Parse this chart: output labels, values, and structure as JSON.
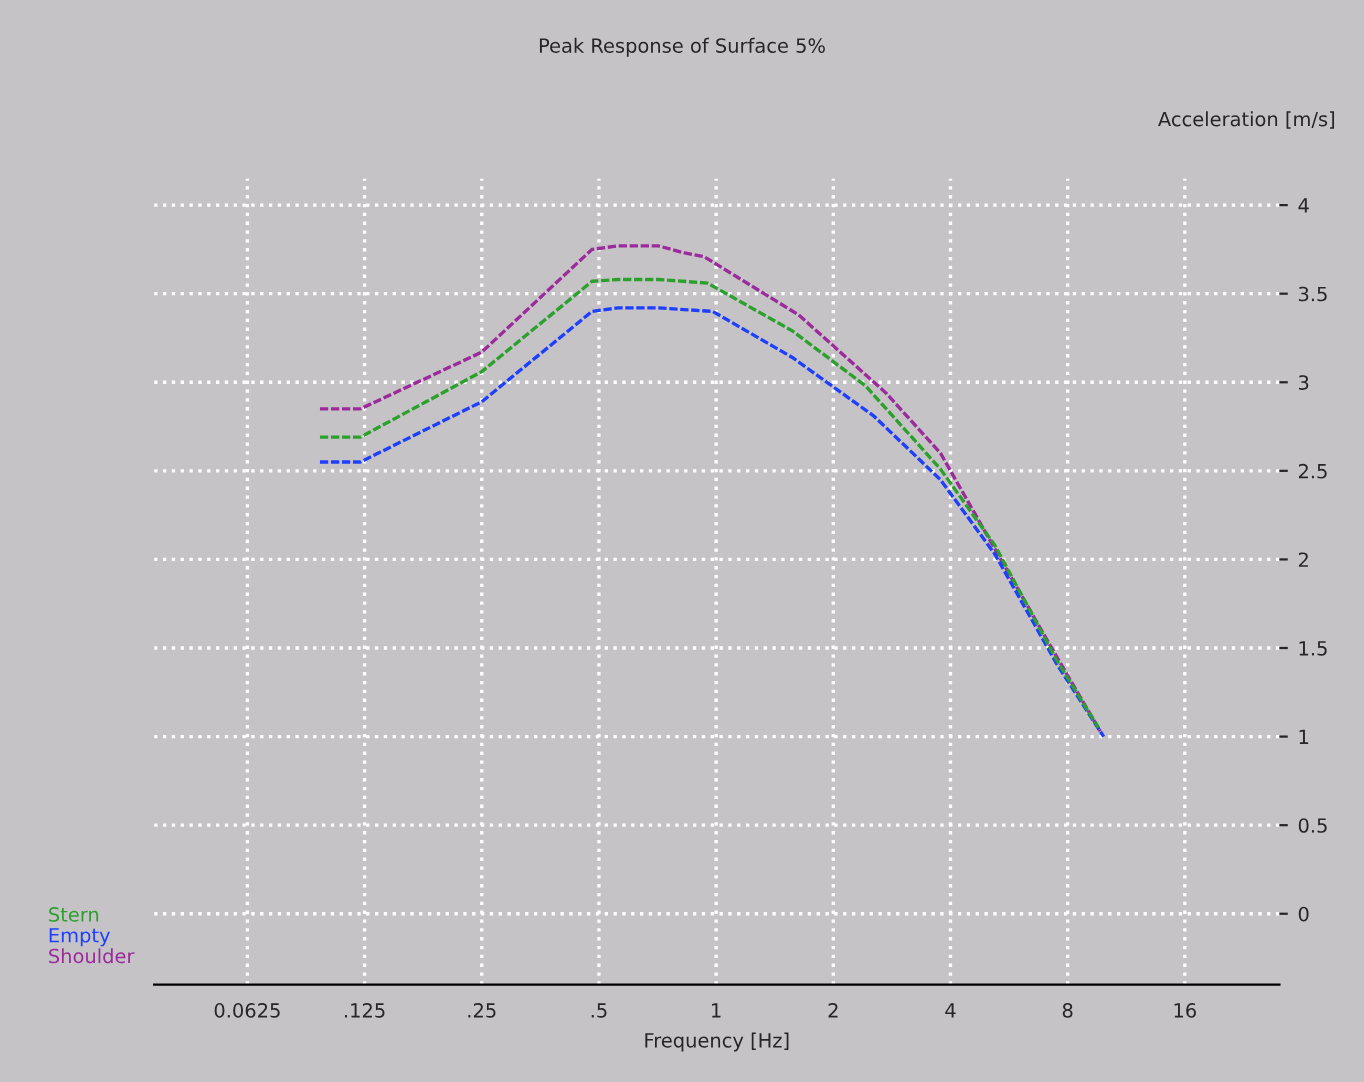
{
  "chart_data": {
    "type": "line",
    "title": "Peak Response of Surface 5%",
    "xlabel": "Frequency [Hz]",
    "ylabel": "Acceleration [m/s]",
    "log": "x",
    "xlim": [
      0.036,
      28
    ],
    "xticks": [
      {
        "value": 0.0625,
        "label": "0.0625"
      },
      {
        "value": 0.125,
        "label": ".125"
      },
      {
        "value": 0.25,
        "label": ".25"
      },
      {
        "value": 0.5,
        "label": ".5"
      },
      1,
      2,
      4,
      8,
      16
    ],
    "ylim": [
      -0.4,
      4.15
    ],
    "yticks": [
      0,
      0.5,
      1,
      1.5,
      2,
      2.5,
      3,
      3.5,
      4
    ],
    "grid": true,
    "legend": "bottom left",
    "line_style": "dashed",
    "series": [
      {
        "name": "Stern",
        "color": "#2ca02c",
        "x": [
          0.096,
          0.122,
          0.25,
          0.48,
          0.56,
          0.71,
          0.95,
          1.57,
          2.42,
          3.77,
          5.2,
          7.5,
          9.6
        ],
        "values": [
          2.69,
          2.69,
          3.06,
          3.57,
          3.58,
          3.58,
          3.56,
          3.29,
          2.98,
          2.51,
          2.08,
          1.43,
          1.05
        ]
      },
      {
        "name": "Empty",
        "color": "#1f3fff",
        "x": [
          0.096,
          0.122,
          0.25,
          0.48,
          0.56,
          0.71,
          0.98,
          1.57,
          2.54,
          3.77,
          5.2,
          7.5,
          9.9
        ],
        "values": [
          2.55,
          2.55,
          2.89,
          3.4,
          3.42,
          3.42,
          3.4,
          3.14,
          2.81,
          2.45,
          2.03,
          1.41,
          1.0
        ]
      },
      {
        "name": "Shoulder",
        "color": "#9b2a9b",
        "x": [
          0.096,
          0.122,
          0.25,
          0.48,
          0.56,
          0.71,
          0.83,
          0.93,
          1.63,
          2.73,
          3.77,
          5.2,
          7.5,
          9.7
        ],
        "values": [
          2.85,
          2.85,
          3.17,
          3.75,
          3.77,
          3.77,
          3.73,
          3.71,
          3.38,
          2.94,
          2.6,
          2.06,
          1.45,
          1.03
        ]
      }
    ]
  }
}
